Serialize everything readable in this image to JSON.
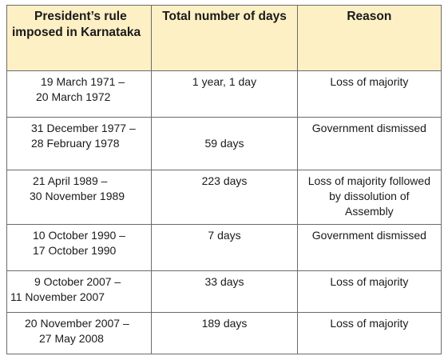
{
  "table": {
    "headers": {
      "period_line1": "President’s rule",
      "period_line2": "imposed in Karnataka",
      "days": "Total number of days",
      "reason": "Reason"
    },
    "rows": [
      {
        "period_line1": "19 March 1971 –",
        "period_line2": "20 March 1972",
        "days": "1 year, 1 day",
        "reason_lines": [
          "Loss of majority",
          "",
          ""
        ]
      },
      {
        "period_line1": "31 December 1977 –",
        "period_line2": "28 February 1978",
        "days": "59 days",
        "reason_lines": [
          "Government dismissed",
          "",
          ""
        ]
      },
      {
        "period_line1": "21 April 1989 –",
        "period_line2": "30 November 1989",
        "days": "223 days",
        "reason_lines": [
          "Loss of majority followed",
          "by dissolution of",
          "Assembly"
        ]
      },
      {
        "period_line1": "10 October 1990 –",
        "period_line2": "17 October 1990",
        "days": "7 days",
        "reason_lines": [
          "Government dismissed",
          "",
          ""
        ]
      },
      {
        "period_line1": "9 October 2007 –",
        "period_line2": "11 November 2007",
        "days": "33 days",
        "reason_lines": [
          "Loss of majority",
          "",
          ""
        ]
      },
      {
        "period_line1": "20 November 2007 –",
        "period_line2": "27 May 2008",
        "days": "189 days",
        "reason_lines": [
          "Loss of majority",
          "",
          ""
        ]
      }
    ]
  }
}
